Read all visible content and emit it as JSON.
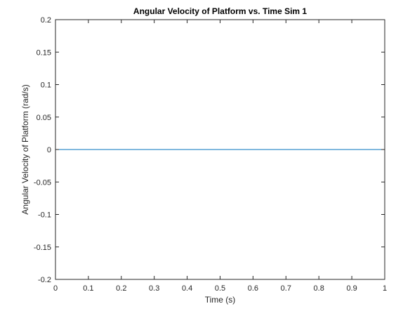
{
  "chart_data": {
    "type": "line",
    "title": "Angular Velocity of Platform vs. Time Sim 1",
    "xlabel": "Time (s)",
    "ylabel": "Angular Velocity of Platform (rad/s)",
    "xlim": [
      0,
      1
    ],
    "ylim": [
      -0.2,
      0.2
    ],
    "xticks": [
      0,
      0.1,
      0.2,
      0.3,
      0.4,
      0.5,
      0.6,
      0.7,
      0.8,
      0.9,
      1
    ],
    "xtick_labels": [
      "0",
      "0.1",
      "0.2",
      "0.3",
      "0.4",
      "0.5",
      "0.6",
      "0.7",
      "0.8",
      "0.9",
      "1"
    ],
    "yticks": [
      -0.2,
      -0.15,
      -0.1,
      -0.05,
      0,
      0.05,
      0.1,
      0.15,
      0.2
    ],
    "ytick_labels": [
      "-0.2",
      "-0.15",
      "-0.1",
      "-0.05",
      "0",
      "0.05",
      "0.1",
      "0.15",
      "0.2"
    ],
    "grid": false,
    "box": true,
    "series": [
      {
        "x": [
          0,
          1
        ],
        "y": [
          0,
          0
        ],
        "color": "#0072BD"
      }
    ]
  }
}
